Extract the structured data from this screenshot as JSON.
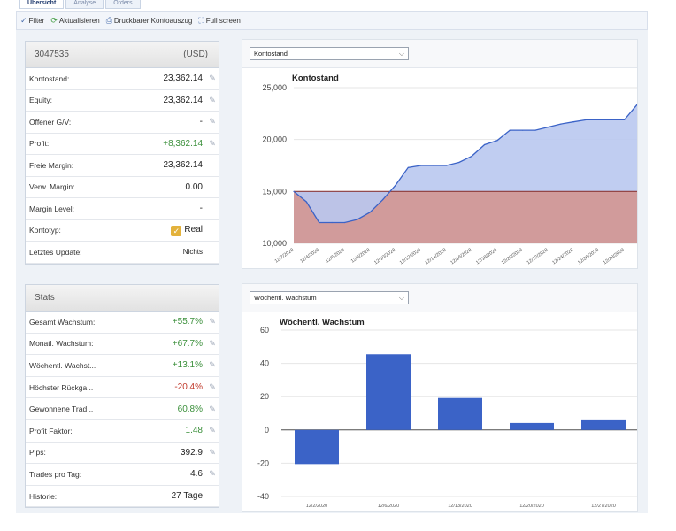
{
  "tabs": [
    {
      "label": "Übersicht",
      "active": true
    },
    {
      "label": "Analyse",
      "active": false
    },
    {
      "label": "Orders",
      "active": false
    }
  ],
  "toolbar": {
    "filter": "Filter",
    "refresh": "Aktualisieren",
    "print": "Druckbarer Kontoauszug",
    "fullscreen": "Full screen"
  },
  "account": {
    "number": "3047535",
    "currency": "(USD)",
    "rows": [
      {
        "label": "Kontostand:",
        "value": "23,362.14",
        "edit": true
      },
      {
        "label": "Equity:",
        "value": "23,362.14",
        "edit": true
      },
      {
        "label": "Offener G/V:",
        "value": "-",
        "edit": true
      },
      {
        "label": "Profit:",
        "value": "+8,362.14",
        "edit": true,
        "tone": "pos"
      },
      {
        "label": "Freie Margin:",
        "value": "23,362.14",
        "edit": false
      },
      {
        "label": "Verw. Margin:",
        "value": "0.00",
        "edit": false
      },
      {
        "label": "Margin Level:",
        "value": "-",
        "edit": false
      },
      {
        "label": "Kontotyp:",
        "value": "Real",
        "edit": false,
        "checkbox": true
      },
      {
        "label": "Letztes Update:",
        "value": "Nichts",
        "edit": false,
        "small": true
      }
    ]
  },
  "stats": {
    "title": "Stats",
    "rows": [
      {
        "label": "Gesamt Wachstum:",
        "value": "+55.7%",
        "tone": "pos"
      },
      {
        "label": "Monatl. Wachstum:",
        "value": "+67.7%",
        "tone": "pos"
      },
      {
        "label": "Wöchentl. Wachst...",
        "value": "+13.1%",
        "tone": "pos"
      },
      {
        "label": "Höchster Rückga...",
        "value": "-20.4%",
        "tone": "neg"
      },
      {
        "label": "Gewonnene Trad...",
        "value": "60.8%",
        "tone": "pos"
      },
      {
        "label": "Profit Faktor:",
        "value": "1.48",
        "tone": "pos"
      },
      {
        "label": "Pips:",
        "value": "392.9",
        "tone": ""
      },
      {
        "label": "Trades pro Tag:",
        "value": "4.6",
        "tone": ""
      },
      {
        "label": "Historie:",
        "value": "27 Tage",
        "tone": "",
        "noedit": true
      }
    ]
  },
  "colors": {
    "accent": "#3b63c7",
    "positive": "#3a8f3a",
    "negative": "#c0392b",
    "area_fill": "#b9c8ef",
    "baseline_fill": "#c98a8a"
  },
  "chart_data": [
    {
      "type": "area",
      "dropdown": "Kontostand",
      "title": "Kontostand",
      "baseline": 15000,
      "ylim": [
        10000,
        25000
      ],
      "yticks": [
        10000,
        15000,
        20000,
        25000
      ],
      "ytick_labels": [
        "10,000",
        "15,000",
        "20,000",
        "25,000"
      ],
      "x_labels": [
        "12/2/2020",
        "12/4/2020",
        "12/6/2020",
        "12/8/2020",
        "12/10/2020",
        "12/12/2020",
        "12/14/2020",
        "12/16/2020",
        "12/18/2020",
        "12/20/2020",
        "12/22/2020",
        "12/24/2020",
        "12/26/2020",
        "12/28/2020"
      ],
      "x_range": [
        "12/2/2020",
        "12/29/2020"
      ],
      "points": [
        [
          "12/2/2020",
          15000
        ],
        [
          "12/3/2020",
          14000
        ],
        [
          "12/4/2020",
          12000
        ],
        [
          "12/5/2020",
          12000
        ],
        [
          "12/6/2020",
          12000
        ],
        [
          "12/7/2020",
          12300
        ],
        [
          "12/8/2020",
          13000
        ],
        [
          "12/9/2020",
          14200
        ],
        [
          "12/10/2020",
          15600
        ],
        [
          "12/11/2020",
          17300
        ],
        [
          "12/12/2020",
          17500
        ],
        [
          "12/13/2020",
          17500
        ],
        [
          "12/14/2020",
          17500
        ],
        [
          "12/15/2020",
          17800
        ],
        [
          "12/16/2020",
          18400
        ],
        [
          "12/17/2020",
          19500
        ],
        [
          "12/18/2020",
          19900
        ],
        [
          "12/19/2020",
          20900
        ],
        [
          "12/20/2020",
          20900
        ],
        [
          "12/21/2020",
          20900
        ],
        [
          "12/22/2020",
          21200
        ],
        [
          "12/23/2020",
          21500
        ],
        [
          "12/24/2020",
          21700
        ],
        [
          "12/25/2020",
          21900
        ],
        [
          "12/26/2020",
          21900
        ],
        [
          "12/27/2020",
          21900
        ],
        [
          "12/28/2020",
          21900
        ],
        [
          "12/29/2020",
          23362.14
        ]
      ]
    },
    {
      "type": "bar",
      "dropdown": "Wöchentl. Wachstum",
      "title": "Wöchentl. Wachstum",
      "categories": [
        "12/2/2020",
        "12/6/2020",
        "12/13/2020",
        "12/20/2020",
        "12/27/2020"
      ],
      "values": [
        -20.5,
        45.5,
        19.2,
        4.2,
        5.8
      ],
      "ylim": [
        -40,
        60
      ],
      "yticks": [
        -40,
        -20,
        0,
        20,
        40,
        60
      ]
    }
  ]
}
